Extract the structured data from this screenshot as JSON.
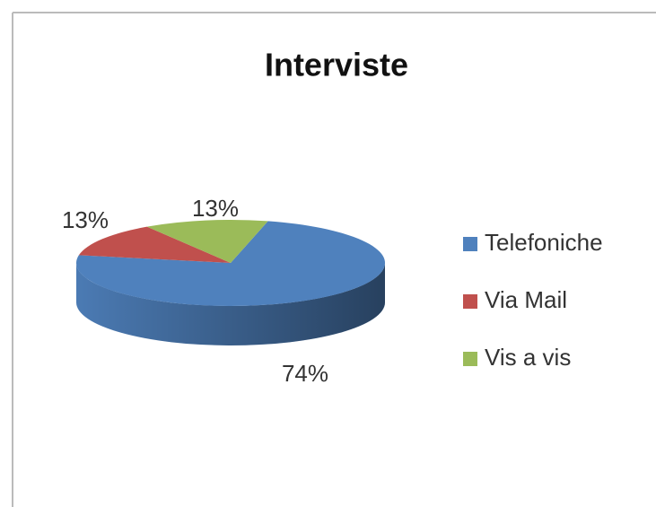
{
  "chart_data": {
    "type": "pie",
    "title": "Interviste",
    "categories": [
      "Telefoniche",
      "Via Mail",
      "Vis a vis"
    ],
    "values": [
      74,
      13,
      13
    ],
    "value_labels": [
      "74%",
      "13%",
      "13%"
    ],
    "colors": [
      "#4f81bd",
      "#c0504d",
      "#9bbb59"
    ],
    "legend": "right"
  }
}
